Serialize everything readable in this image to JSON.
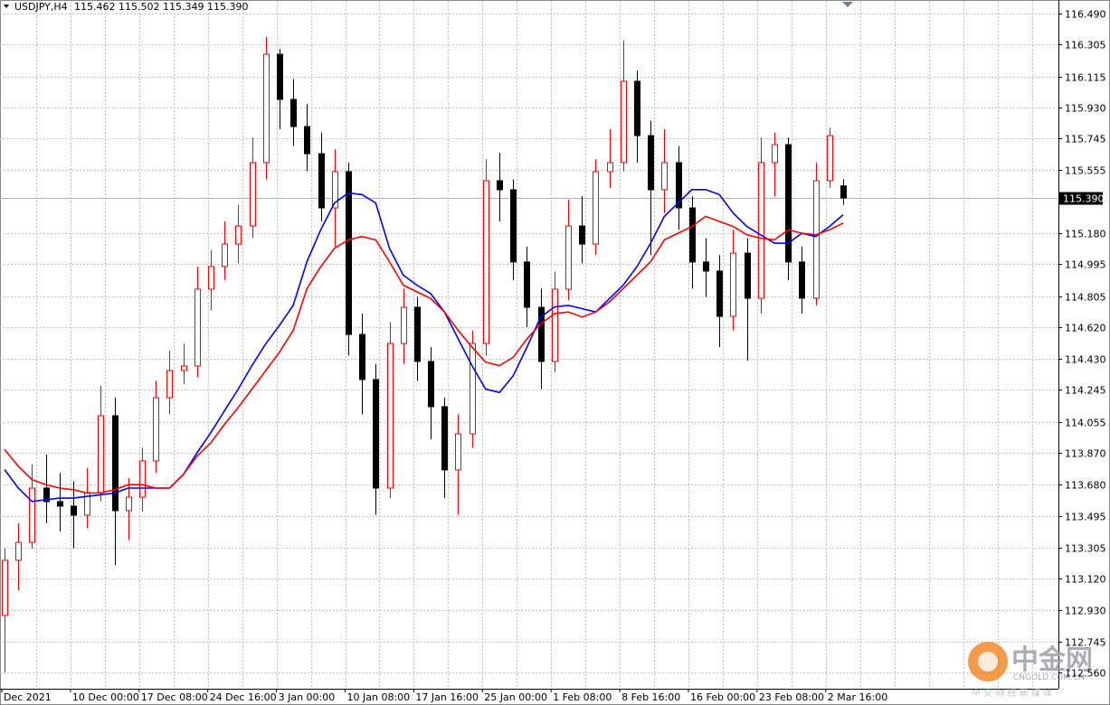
{
  "chart_data": {
    "type": "candlestick",
    "title": "USDJPY,H4",
    "quote": "115.462 115.502 115.349 115.390",
    "up_color": "#ff0000",
    "down_color": "#000000",
    "open": [
      112.9,
      113.229,
      113.336,
      113.66,
      113.579,
      113.552,
      113.498,
      113.633,
      114.091,
      113.525,
      113.606,
      113.822,
      114.199,
      114.361,
      114.388,
      114.846,
      114.981,
      115.115,
      115.223,
      115.601,
      116.247,
      115.978,
      115.816,
      115.654,
      115.331,
      115.547,
      114.576,
      114.307,
      113.66,
      114.522,
      114.738,
      114.415,
      114.145,
      113.768,
      113.983,
      114.522,
      115.493,
      115.439,
      115.008,
      114.738,
      114.415,
      114.846,
      115.223,
      115.115,
      115.547,
      115.601,
      116.086,
      115.762,
      115.439,
      115.601,
      115.331,
      115.008,
      114.954,
      114.684,
      115.061,
      114.792,
      115.601,
      115.708,
      115.008,
      114.792,
      115.493,
      115.462
    ],
    "high": [
      113.3,
      113.45,
      113.8,
      113.86,
      113.75,
      113.7,
      113.78,
      114.27,
      114.2,
      113.72,
      113.9,
      114.3,
      114.48,
      114.52,
      114.98,
      115.08,
      115.25,
      115.35,
      115.75,
      116.35,
      116.28,
      116.1,
      115.95,
      115.78,
      115.68,
      115.6,
      114.7,
      114.4,
      114.65,
      114.85,
      114.8,
      114.5,
      114.2,
      114.1,
      114.6,
      115.62,
      115.66,
      115.5,
      115.1,
      114.85,
      114.95,
      115.38,
      115.4,
      115.62,
      115.8,
      116.33,
      116.15,
      115.85,
      115.8,
      115.7,
      115.4,
      115.15,
      115.05,
      115.2,
      115.15,
      115.75,
      115.78,
      115.75,
      115.1,
      115.6,
      115.81,
      115.502
    ],
    "low": [
      112.56,
      113.05,
      113.3,
      113.45,
      113.4,
      113.3,
      113.42,
      113.58,
      113.2,
      113.35,
      113.52,
      113.75,
      114.1,
      114.28,
      114.32,
      114.72,
      114.9,
      115.0,
      115.15,
      115.5,
      115.8,
      115.7,
      115.55,
      115.25,
      115.1,
      114.45,
      114.1,
      113.5,
      113.6,
      114.4,
      114.3,
      113.95,
      113.6,
      113.5,
      113.9,
      114.45,
      115.25,
      114.9,
      114.62,
      114.25,
      114.35,
      114.78,
      115.0,
      115.05,
      115.45,
      115.55,
      115.6,
      115.05,
      115.3,
      115.2,
      114.85,
      114.8,
      114.5,
      114.6,
      114.42,
      114.7,
      115.4,
      114.9,
      114.7,
      114.75,
      115.45,
      115.349
    ],
    "close": [
      113.229,
      113.336,
      113.66,
      113.579,
      113.552,
      113.498,
      113.633,
      114.091,
      113.525,
      113.606,
      113.822,
      114.199,
      114.361,
      114.388,
      114.846,
      114.981,
      115.115,
      115.223,
      115.601,
      116.247,
      115.978,
      115.816,
      115.654,
      115.331,
      115.547,
      114.576,
      114.307,
      113.66,
      114.522,
      114.738,
      114.415,
      114.145,
      113.768,
      113.983,
      114.522,
      115.493,
      115.439,
      115.008,
      114.738,
      114.415,
      114.846,
      115.223,
      115.115,
      115.547,
      115.601,
      116.086,
      115.762,
      115.439,
      115.601,
      115.331,
      115.008,
      114.954,
      114.684,
      115.061,
      114.792,
      115.601,
      115.708,
      115.008,
      114.792,
      115.493,
      115.762,
      115.39
    ],
    "moving_averages": [
      {
        "color": "#0000ff",
        "values": [
          113.77,
          113.66,
          113.58,
          113.59,
          113.6,
          113.6,
          113.61,
          113.62,
          113.63,
          113.66,
          113.66,
          113.66,
          113.66,
          113.74,
          113.87,
          113.99,
          114.12,
          114.25,
          114.39,
          114.52,
          114.63,
          114.75,
          115.01,
          115.2,
          115.36,
          115.42,
          115.41,
          115.36,
          115.09,
          114.93,
          114.87,
          114.82,
          114.71,
          114.55,
          114.39,
          114.25,
          114.23,
          114.33,
          114.5,
          114.68,
          114.74,
          114.75,
          114.73,
          114.71,
          114.79,
          114.87,
          114.98,
          115.12,
          115.28,
          115.36,
          115.44,
          115.44,
          115.41,
          115.3,
          115.22,
          115.17,
          115.12,
          115.12,
          115.18,
          115.16,
          115.22,
          115.29
        ]
      },
      {
        "color": "#ff0000",
        "values": [
          113.89,
          113.79,
          113.71,
          113.68,
          113.66,
          113.65,
          113.63,
          113.63,
          113.65,
          113.68,
          113.68,
          113.66,
          113.66,
          113.74,
          113.85,
          113.93,
          114.04,
          114.14,
          114.25,
          114.36,
          114.47,
          114.6,
          114.85,
          114.98,
          115.09,
          115.14,
          115.16,
          115.14,
          115.01,
          114.87,
          114.83,
          114.79,
          114.71,
          114.6,
          114.5,
          114.41,
          114.39,
          114.44,
          114.55,
          114.64,
          114.7,
          114.71,
          114.68,
          114.71,
          114.77,
          114.85,
          114.93,
          115.01,
          115.14,
          115.18,
          115.22,
          115.28,
          115.25,
          115.22,
          115.17,
          115.15,
          115.14,
          115.2,
          115.18,
          115.17,
          115.2,
          115.24
        ]
      }
    ],
    "ylim": [
      112.463,
      116.56
    ],
    "yticks": [
      {
        "value": 116.49,
        "label": "116.490"
      },
      116.305,
      116.115,
      {
        "value": 115.93,
        "label": "115.930"
      },
      115.745,
      115.555,
      {
        "value": 115.18,
        "label": "115.180"
      },
      114.995,
      114.805,
      {
        "value": 114.62,
        "label": "114.620"
      },
      {
        "value": 114.43,
        "label": "114.430"
      },
      114.245,
      114.055,
      {
        "value": 113.87,
        "label": "113.870"
      },
      {
        "value": 113.68,
        "label": "113.680"
      },
      113.495,
      113.305,
      {
        "value": 113.12,
        "label": "113.120"
      },
      {
        "value": 112.93,
        "label": "112.930"
      },
      112.745,
      {
        "value": 112.56,
        "label": "112.560"
      }
    ],
    "xticks": [
      "Dec 2021",
      "10 Dec 00:00",
      "17 Dec 08:00",
      "24 Dec 16:00",
      "3 Jan 00:00",
      "10 Jan 08:00",
      "17 Jan 16:00",
      "25 Jan 00:00",
      "1 Feb 08:00",
      "8 Feb 16:00",
      "16 Feb 00:00",
      "23 Feb 08:00",
      "2 Mar 16:00"
    ],
    "grid": true,
    "current_price": {
      "value": 115.39,
      "label": "115.390"
    }
  },
  "watermark": {
    "brand": "中金网",
    "domain": "CNGOLD.COM.CN",
    "slogan": "中 交 财 经 新 媒 体"
  }
}
